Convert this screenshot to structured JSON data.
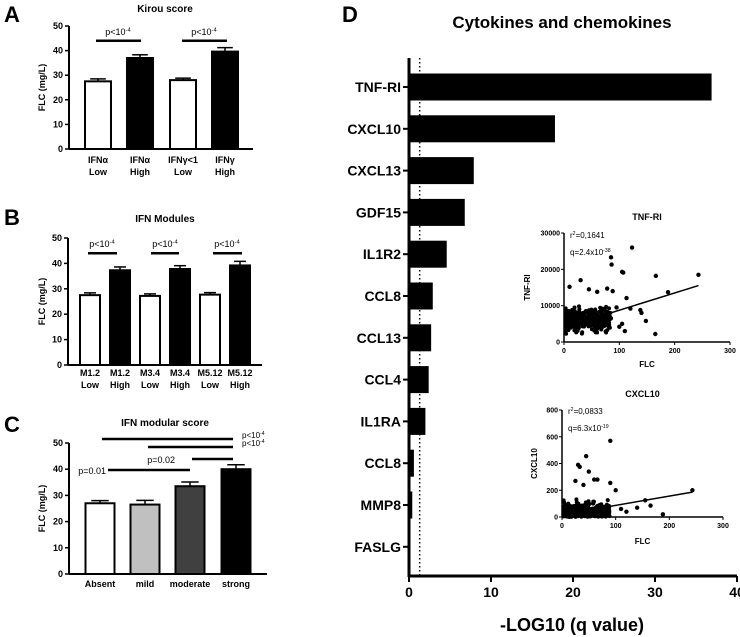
{
  "panels": {
    "A": {
      "letter": "A",
      "title": "Kirou score",
      "ylabel": "FLC (mg/L)"
    },
    "B": {
      "letter": "B",
      "title": "IFN Modules",
      "ylabel": "FLC (mg/L)"
    },
    "C": {
      "letter": "C",
      "title": "IFN modular score",
      "ylabel": "FLC (mg/L)"
    },
    "D": {
      "letter": "D",
      "title": "Cytokines and chemokines",
      "xlabel": "-LOG10 (q value)"
    }
  },
  "chart_data": [
    {
      "id": "A",
      "type": "bar",
      "title": "Kirou score",
      "ylabel": "FLC (mg/L)",
      "ylim": [
        0,
        50
      ],
      "yticks": [
        "0",
        "10",
        "20",
        "30",
        "40",
        "50"
      ],
      "categories": [
        [
          "IFNα",
          "Low"
        ],
        [
          "IFNα",
          "High"
        ],
        [
          "IFNγ<1",
          "Low"
        ],
        [
          "IFNγ",
          "High"
        ]
      ],
      "values": [
        27.5,
        37.0,
        28.0,
        39.6
      ],
      "errors": [
        1.0,
        1.3,
        0.8,
        1.6
      ],
      "fills": [
        "#ffffff",
        "#000000",
        "#ffffff",
        "#000000"
      ],
      "significance": [
        {
          "from": 0,
          "to": 1,
          "base": "p<10",
          "sup": "-4"
        },
        {
          "from": 2,
          "to": 3,
          "base": "p<10",
          "sup": "-4"
        }
      ]
    },
    {
      "id": "B",
      "type": "bar",
      "title": "IFN Modules",
      "ylabel": "FLC (mg/L)",
      "ylim": [
        0,
        50
      ],
      "yticks": [
        "0",
        "10",
        "20",
        "30",
        "40",
        "50"
      ],
      "categories": [
        [
          "M1.2",
          "Low"
        ],
        [
          "M1.2",
          "High"
        ],
        [
          "M3.4",
          "Low"
        ],
        [
          "M3.4",
          "High"
        ],
        [
          "M5.12",
          "Low"
        ],
        [
          "M5.12",
          "High"
        ]
      ],
      "values": [
        27.5,
        37.3,
        27.2,
        37.8,
        27.7,
        39.2
      ],
      "errors": [
        0.9,
        1.3,
        0.8,
        1.3,
        0.8,
        1.6
      ],
      "fills": [
        "#ffffff",
        "#000000",
        "#ffffff",
        "#000000",
        "#ffffff",
        "#000000"
      ],
      "significance": [
        {
          "from": 0,
          "to": 1,
          "base": "p<10",
          "sup": "-4"
        },
        {
          "from": 2,
          "to": 3,
          "base": "p<10",
          "sup": "-4"
        },
        {
          "from": 4,
          "to": 5,
          "base": "p<10",
          "sup": "-4"
        }
      ]
    },
    {
      "id": "C",
      "type": "bar",
      "title": "IFN modular score",
      "ylabel": "FLC (mg/L)",
      "ylim": [
        0,
        50
      ],
      "yticks": [
        "0",
        "10",
        "20",
        "30",
        "40",
        "50"
      ],
      "categories": [
        [
          "Absent"
        ],
        [
          "mild"
        ],
        [
          "moderate"
        ],
        [
          "strong"
        ]
      ],
      "values": [
        27.0,
        26.5,
        33.5,
        40.0
      ],
      "errors": [
        1.0,
        1.6,
        1.6,
        1.7
      ],
      "fills": [
        "#ffffff",
        "#c0c0c0",
        "#404040",
        "#000000"
      ],
      "significance": [
        {
          "from": 0,
          "to": 3,
          "base": "p<10",
          "sup": "-4"
        },
        {
          "from": 1,
          "to": 3,
          "base": "p<10",
          "sup": "-4"
        },
        {
          "from": 2,
          "to": 3,
          "base": "p=0.02",
          "sup": ""
        },
        {
          "from": 0,
          "to": 2,
          "base": "p=0.01",
          "sup": ""
        }
      ]
    },
    {
      "id": "D",
      "type": "bar",
      "orientation": "horizontal",
      "title": "Cytokines and chemokines",
      "xlabel": "-LOG10 (q value)",
      "xlim": [
        0,
        40
      ],
      "xticks": [
        "0",
        "10",
        "20",
        "30",
        "40"
      ],
      "threshold": 1.3,
      "categories": [
        "TNF-RI",
        "CXCL10",
        "CXCL13",
        "GDF15",
        "IL1R2",
        "CCL8",
        "CCL13",
        "CCL4",
        "IL1RA",
        "CCL8",
        "MMP8",
        "FASLG"
      ],
      "values": [
        36.9,
        17.8,
        7.9,
        6.8,
        4.6,
        2.9,
        2.7,
        2.4,
        2.0,
        0.6,
        0.4,
        0.1
      ]
    },
    {
      "id": "D-inset-1",
      "type": "scatter",
      "title": "TNF-RI",
      "xlabel": "FLC",
      "ylabel": "TNF-RI",
      "xlim": [
        0,
        300
      ],
      "ylim": [
        0,
        30000
      ],
      "xticks": [
        "0",
        "100",
        "200",
        "300"
      ],
      "yticks": [
        "0",
        "10000",
        "20000",
        "30000"
      ],
      "r2": {
        "base": "r",
        "sup": "2",
        "rest": "=0,1641"
      },
      "q": {
        "base": "q=2.4x10",
        "sup": "-38"
      },
      "regression": {
        "slope": 47.5,
        "intercept": 4000,
        "x_from": 70,
        "x_to": 243
      },
      "outliers": [
        [
          123,
          26000
        ],
        [
          85,
          23300
        ],
        [
          86,
          21300
        ],
        [
          105,
          19300
        ],
        [
          107,
          19100
        ],
        [
          166,
          18200
        ],
        [
          243,
          18500
        ],
        [
          188,
          13700
        ],
        [
          165,
          2200
        ],
        [
          148,
          5800
        ],
        [
          140,
          8000
        ],
        [
          138,
          8800
        ],
        [
          113,
          12100
        ],
        [
          78,
          14700
        ],
        [
          88,
          14000
        ],
        [
          95,
          9500
        ],
        [
          100,
          4200
        ],
        [
          110,
          3000
        ],
        [
          105,
          5000
        ],
        [
          120,
          9200
        ],
        [
          30,
          17000
        ],
        [
          10,
          15200
        ],
        [
          45,
          14500
        ],
        [
          60,
          13800
        ]
      ],
      "cluster": {
        "n": 420,
        "x_range": [
          3,
          85
        ],
        "y_mean": 6000,
        "y_sd": 2300,
        "y_min": 1500
      }
    },
    {
      "id": "D-inset-2",
      "type": "scatter",
      "title": "CXCL10",
      "xlabel": "FLC",
      "ylabel": "CXCL10",
      "xlim": [
        0,
        300
      ],
      "ylim": [
        0,
        800
      ],
      "xticks": [
        "0",
        "100",
        "200",
        "300"
      ],
      "yticks": [
        "0",
        "200",
        "400",
        "600",
        "800"
      ],
      "r2": {
        "base": "r",
        "sup": "2",
        "rest": "=0,0833"
      },
      "q": {
        "base": "q=6.3x10",
        "sup": "-19"
      },
      "regression": {
        "slope": 0.69,
        "intercept": 18,
        "x_from": 60,
        "x_to": 243
      },
      "outliers": [
        [
          90,
          570
        ],
        [
          45,
          455
        ],
        [
          30,
          390
        ],
        [
          33,
          375
        ],
        [
          50,
          340
        ],
        [
          90,
          255
        ],
        [
          100,
          200
        ],
        [
          243,
          200
        ],
        [
          155,
          125
        ],
        [
          165,
          85
        ],
        [
          188,
          20
        ],
        [
          60,
          280
        ],
        [
          66,
          280
        ],
        [
          40,
          240
        ],
        [
          25,
          270
        ],
        [
          110,
          60
        ],
        [
          140,
          70
        ],
        [
          120,
          40
        ]
      ],
      "cluster": {
        "n": 420,
        "x_range": [
          3,
          90
        ],
        "y_mean": 45,
        "y_sd": 45,
        "y_min": 0
      }
    }
  ]
}
